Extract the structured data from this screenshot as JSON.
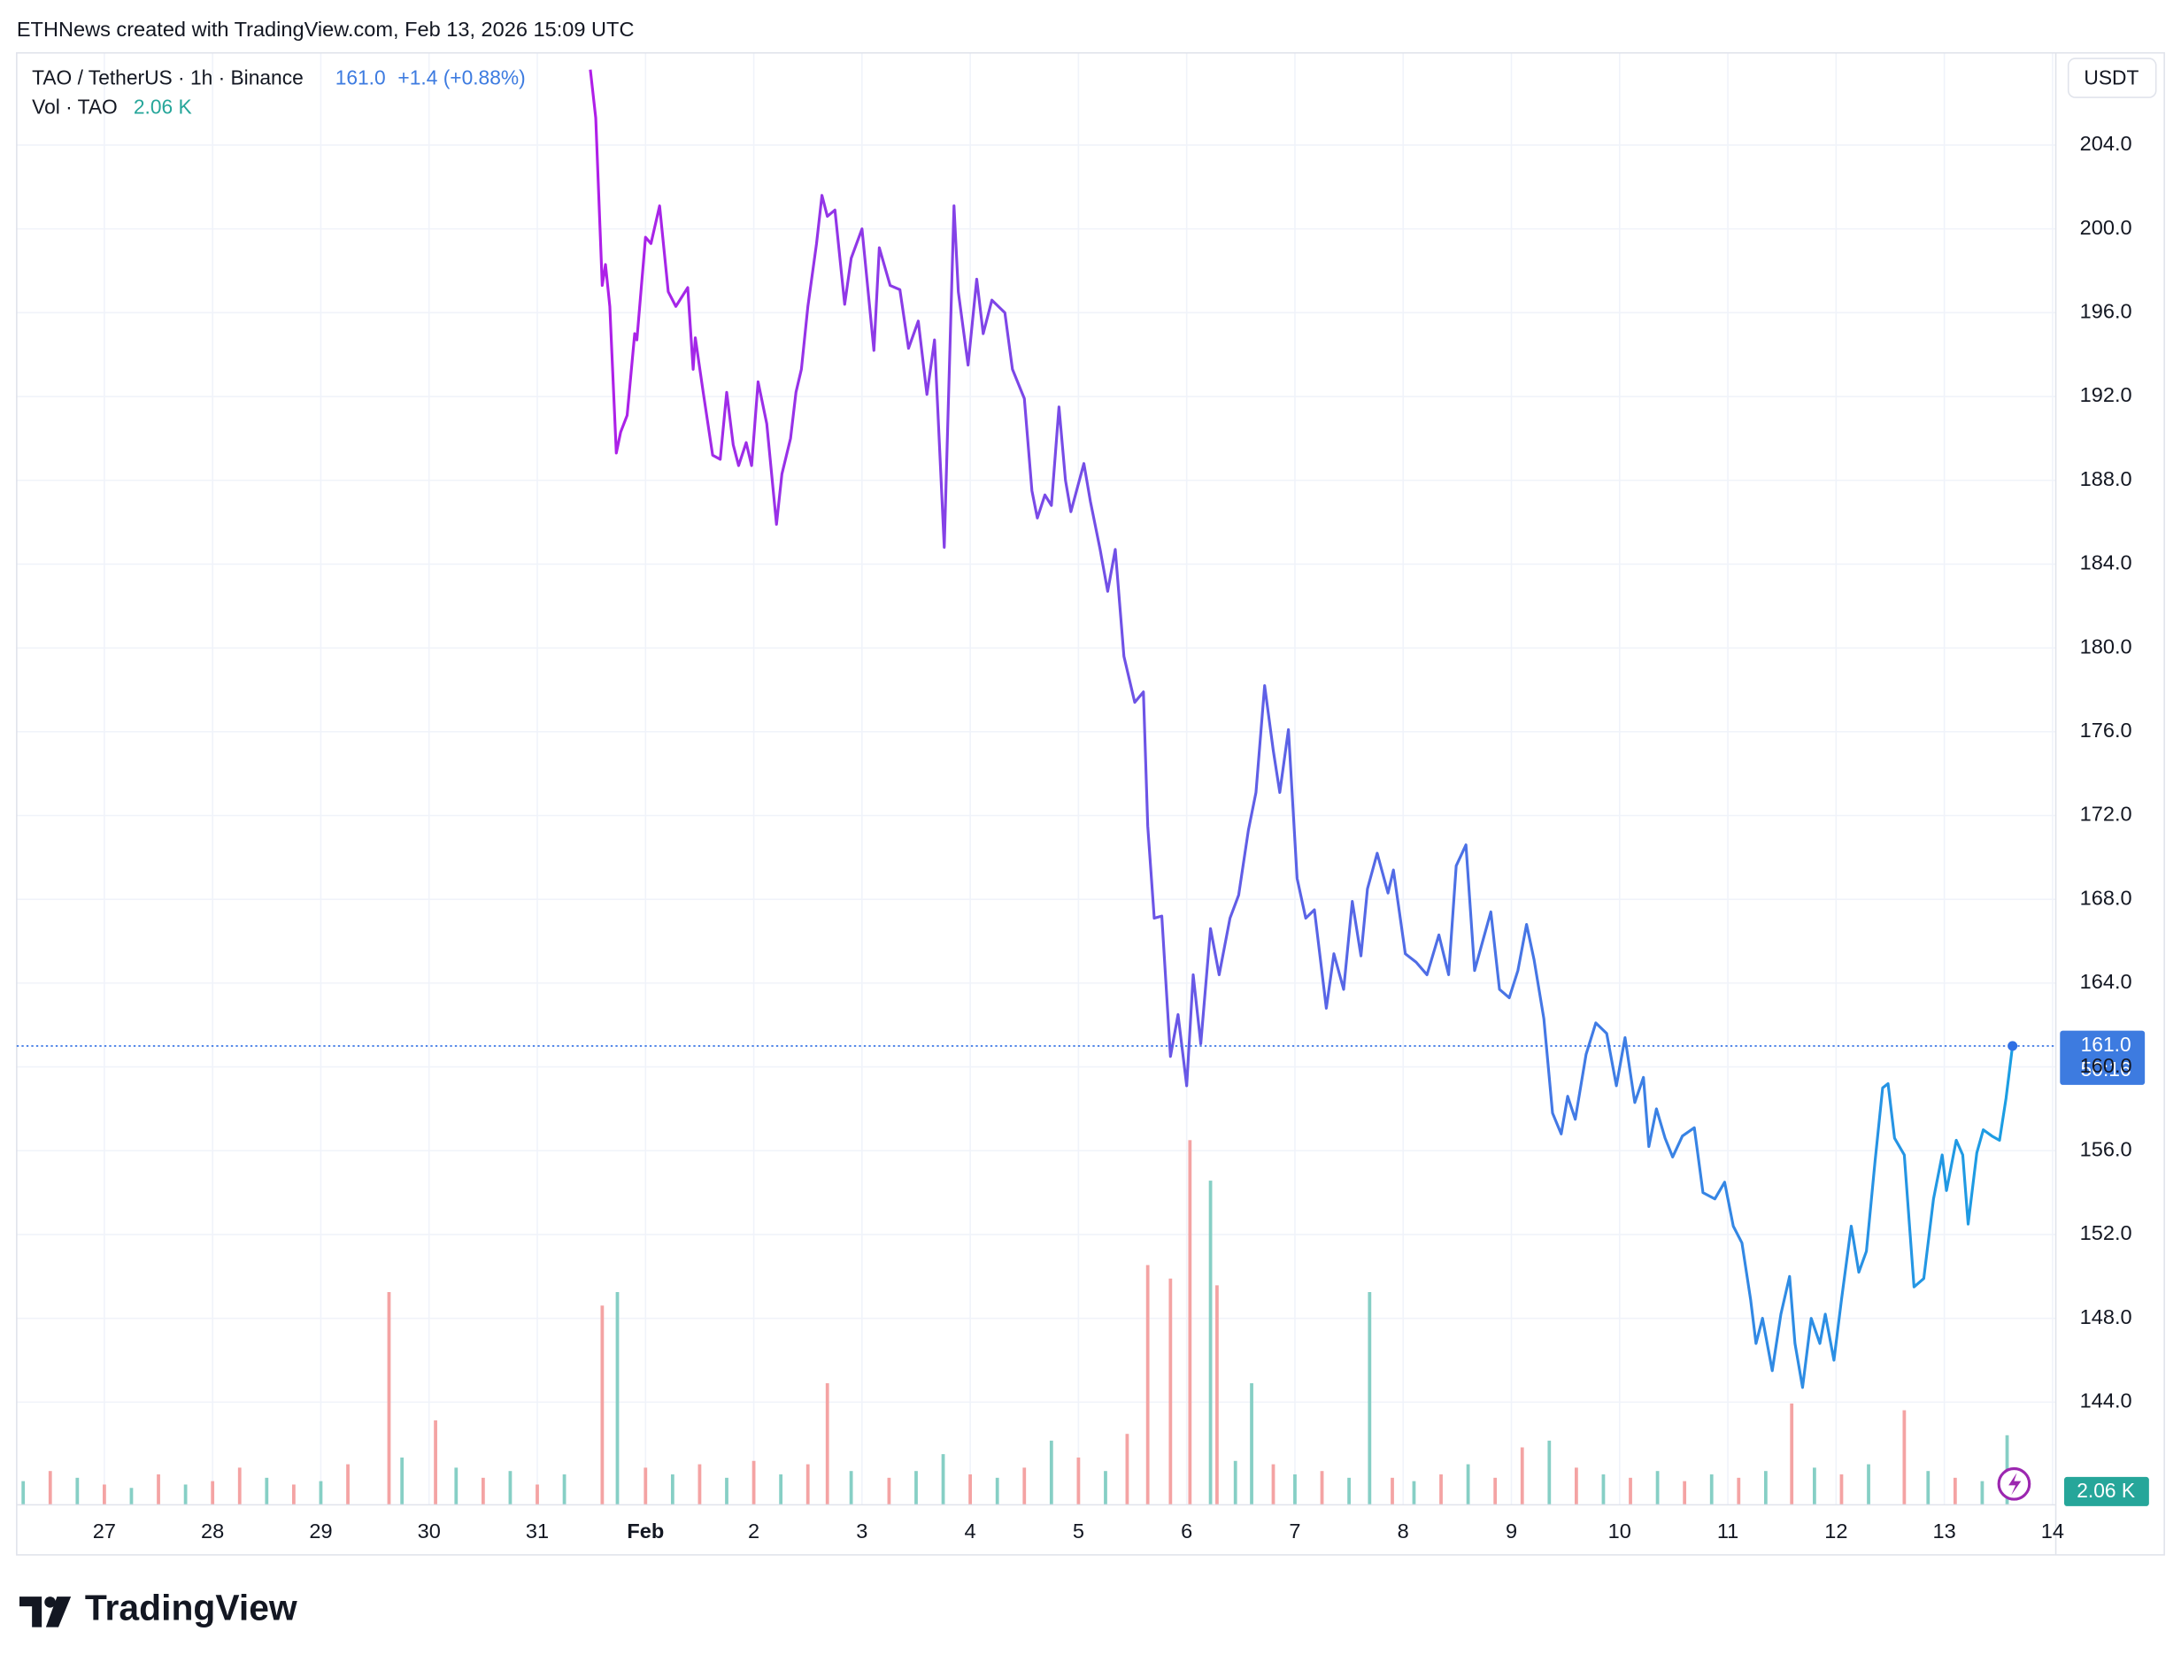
{
  "header": "ETHNews created with TradingView.com, Feb 13, 2026 15:09 UTC",
  "legend": {
    "symbol": "TAO / TetherUS · 1h · Binance",
    "price": "161.0",
    "change": "+1.4 (+0.88%)",
    "vol_title": "Vol · TAO",
    "vol_value": "2.06 K"
  },
  "axis_unit": "USDT",
  "badge": {
    "price": "161.0",
    "countdown": "50:16",
    "vol": "2.06 K"
  },
  "logo": "TradingView",
  "chart_data": {
    "type": "line",
    "xlim": [
      -0.81,
      18.03
    ],
    "xticks": [
      {
        "value": 0,
        "label": "27"
      },
      {
        "value": 1,
        "label": "28"
      },
      {
        "value": 2,
        "label": "29"
      },
      {
        "value": 3,
        "label": "30"
      },
      {
        "value": 4,
        "label": "31"
      },
      {
        "value": 5,
        "label": "Feb"
      },
      {
        "value": 6,
        "label": "2"
      },
      {
        "value": 7,
        "label": "3"
      },
      {
        "value": 8,
        "label": "4"
      },
      {
        "value": 9,
        "label": "5"
      },
      {
        "value": 10,
        "label": "6"
      },
      {
        "value": 11,
        "label": "7"
      },
      {
        "value": 12,
        "label": "8"
      },
      {
        "value": 13,
        "label": "9"
      },
      {
        "value": 14,
        "label": "10"
      },
      {
        "value": 15,
        "label": "11"
      },
      {
        "value": 16,
        "label": "12"
      },
      {
        "value": 17,
        "label": "13"
      },
      {
        "value": 18,
        "label": "14"
      }
    ],
    "ylim": [
      139.1,
      208.4
    ],
    "yticks": [
      {
        "value": 144,
        "label": "144.0"
      },
      {
        "value": 148,
        "label": "148.0"
      },
      {
        "value": 152,
        "label": "152.0"
      },
      {
        "value": 156,
        "label": "156.0"
      },
      {
        "value": 160,
        "label": "160.0"
      },
      {
        "value": 164,
        "label": "164.0"
      },
      {
        "value": 168,
        "label": "168.0"
      },
      {
        "value": 172,
        "label": "172.0"
      },
      {
        "value": 176,
        "label": "176.0"
      },
      {
        "value": 180,
        "label": "180.0"
      },
      {
        "value": 184,
        "label": "184.0"
      },
      {
        "value": 188,
        "label": "188.0"
      },
      {
        "value": 192,
        "label": "192.0"
      },
      {
        "value": 196,
        "label": "196.0"
      },
      {
        "value": 200,
        "label": "200.0"
      },
      {
        "value": 204,
        "label": "204.0"
      }
    ],
    "grid": true,
    "last": 161,
    "last_color": "#2f6fe4",
    "series": [
      {
        "colors": [
          "#b01ee8",
          "#5a63e6",
          "#1b9ee3"
        ],
        "x": [
          4.49,
          4.54,
          4.6,
          4.63,
          4.67,
          4.73,
          4.77,
          4.83,
          4.9,
          4.92,
          5.0,
          5.05,
          5.13,
          5.21,
          5.28,
          5.39,
          5.44,
          5.46,
          5.53,
          5.62,
          5.69,
          5.75,
          5.81,
          5.86,
          5.93,
          5.98,
          6.04,
          6.12,
          6.21,
          6.26,
          6.34,
          6.39,
          6.44,
          6.5,
          6.58,
          6.63,
          6.68,
          6.75,
          6.84,
          6.9,
          7.0,
          7.11,
          7.16,
          7.26,
          7.35,
          7.43,
          7.52,
          7.6,
          7.67,
          7.76,
          7.85,
          7.89,
          7.98,
          8.06,
          8.12,
          8.2,
          8.32,
          8.39,
          8.5,
          8.57,
          8.62,
          8.69,
          8.75,
          8.82,
          8.88,
          8.93,
          9.05,
          9.11,
          9.2,
          9.27,
          9.34,
          9.42,
          9.52,
          9.6,
          9.64,
          9.7,
          9.77,
          9.85,
          9.92,
          10.0,
          10.06,
          10.13,
          10.22,
          10.3,
          10.4,
          10.48,
          10.57,
          10.64,
          10.72,
          10.8,
          10.86,
          10.94,
          11.02,
          11.1,
          11.18,
          11.29,
          11.36,
          11.45,
          11.53,
          11.61,
          11.67,
          11.76,
          11.86,
          11.91,
          12.02,
          12.12,
          12.22,
          12.33,
          12.42,
          12.49,
          12.58,
          12.66,
          12.74,
          12.81,
          12.89,
          12.98,
          13.06,
          13.14,
          13.21,
          13.3,
          13.38,
          13.46,
          13.52,
          13.59,
          13.69,
          13.78,
          13.88,
          13.97,
          14.05,
          14.14,
          14.22,
          14.27,
          14.34,
          14.42,
          14.49,
          14.58,
          14.69,
          14.77,
          14.88,
          14.97,
          15.05,
          15.13,
          15.21,
          15.26,
          15.32,
          15.41,
          15.49,
          15.57,
          15.62,
          15.69,
          15.77,
          15.85,
          15.9,
          15.98,
          16.05,
          16.14,
          16.21,
          16.28,
          16.36,
          16.43,
          16.48,
          16.54,
          16.63,
          16.72,
          16.81,
          16.9,
          16.98,
          17.02,
          17.11,
          17.17,
          17.22,
          17.3,
          17.36,
          17.44,
          17.51,
          17.57,
          17.63
        ],
        "values": [
          207.6,
          205.3,
          197.3,
          198.3,
          196.3,
          189.3,
          190.3,
          191.1,
          195.0,
          194.7,
          199.6,
          199.3,
          201.1,
          197.0,
          196.3,
          197.2,
          193.3,
          194.8,
          192.3,
          189.2,
          189.0,
          192.2,
          189.7,
          188.7,
          189.8,
          188.7,
          192.7,
          190.7,
          185.9,
          188.3,
          190.0,
          192.2,
          193.3,
          196.3,
          199.3,
          201.6,
          200.6,
          200.9,
          196.4,
          198.6,
          200.0,
          194.2,
          199.1,
          197.3,
          197.1,
          194.3,
          195.6,
          192.1,
          194.7,
          184.8,
          201.1,
          197.0,
          193.5,
          197.6,
          195.0,
          196.6,
          196.0,
          193.3,
          191.9,
          187.5,
          186.2,
          187.3,
          186.8,
          191.5,
          188.0,
          186.5,
          188.8,
          187.0,
          184.7,
          182.7,
          184.7,
          179.6,
          177.4,
          177.9,
          171.5,
          167.1,
          167.2,
          160.5,
          162.5,
          159.1,
          164.4,
          161.1,
          166.6,
          164.4,
          167.1,
          168.2,
          171.3,
          173.1,
          178.2,
          175.1,
          173.1,
          176.1,
          169.0,
          167.1,
          167.5,
          162.8,
          165.4,
          163.7,
          167.9,
          165.3,
          168.5,
          170.2,
          168.3,
          169.4,
          165.4,
          165.0,
          164.4,
          166.3,
          164.4,
          169.6,
          170.6,
          164.6,
          166.1,
          167.4,
          163.7,
          163.3,
          164.6,
          166.8,
          165.1,
          162.3,
          157.8,
          156.8,
          158.6,
          157.5,
          160.6,
          162.1,
          161.6,
          159.1,
          161.4,
          158.3,
          159.5,
          156.2,
          158.0,
          156.6,
          155.7,
          156.7,
          157.1,
          154.0,
          153.7,
          154.5,
          152.4,
          151.6,
          148.9,
          146.8,
          148.0,
          145.5,
          148.2,
          150.0,
          146.8,
          144.7,
          148.0,
          146.8,
          148.2,
          146.0,
          148.9,
          152.4,
          150.2,
          151.2,
          155.5,
          159.0,
          159.2,
          156.6,
          155.8,
          149.5,
          149.9,
          153.7,
          155.8,
          154.1,
          156.5,
          155.8,
          152.5,
          155.9,
          157.0,
          156.7,
          156.5,
          158.5,
          161.0
        ]
      }
    ],
    "volume": {
      "ylim": [
        0,
        43
      ],
      "x": [
        -0.75,
        -0.5,
        -0.25,
        0,
        0.25,
        0.5,
        0.75,
        1.0,
        1.25,
        1.5,
        1.75,
        2.0,
        2.25,
        2.63,
        2.75,
        3.06,
        3.25,
        3.5,
        3.75,
        4.0,
        4.25,
        4.6,
        4.74,
        5.0,
        5.25,
        5.5,
        5.75,
        6.0,
        6.25,
        6.5,
        6.68,
        6.9,
        7.25,
        7.5,
        7.75,
        8.0,
        8.25,
        8.5,
        8.75,
        9.0,
        9.25,
        9.45,
        9.64,
        9.85,
        10.03,
        10.22,
        10.28,
        10.45,
        10.6,
        10.8,
        11.0,
        11.25,
        11.5,
        11.69,
        11.9,
        12.1,
        12.35,
        12.6,
        12.85,
        13.1,
        13.35,
        13.6,
        13.85,
        14.1,
        14.35,
        14.6,
        14.85,
        15.1,
        15.35,
        15.59,
        15.8,
        16.05,
        16.3,
        16.63,
        16.85,
        17.1,
        17.35,
        17.58
      ],
      "values": [
        0.7,
        1.0,
        0.8,
        0.6,
        0.5,
        0.9,
        0.6,
        0.7,
        1.1,
        0.8,
        0.6,
        0.7,
        1.2,
        6.3,
        1.4,
        2.5,
        1.1,
        0.8,
        1.0,
        0.6,
        0.9,
        5.9,
        6.3,
        1.1,
        0.9,
        1.2,
        0.8,
        1.3,
        0.9,
        1.2,
        3.6,
        1.0,
        0.8,
        1.0,
        1.5,
        0.9,
        0.8,
        1.1,
        1.9,
        1.4,
        1.0,
        2.1,
        7.1,
        6.7,
        10.8,
        9.6,
        6.5,
        1.3,
        3.6,
        1.2,
        0.9,
        1.0,
        0.8,
        6.3,
        0.8,
        0.7,
        0.9,
        1.2,
        0.8,
        1.7,
        1.9,
        1.1,
        0.9,
        0.8,
        1.0,
        0.7,
        0.9,
        0.8,
        1.0,
        3.0,
        1.1,
        0.9,
        1.2,
        2.8,
        1.0,
        0.8,
        0.7,
        2.06
      ],
      "colors": [
        "#86cfc5",
        "#f4a3a3",
        "#86cfc5",
        "#f4a3a3",
        "#86cfc5",
        "#f4a3a3",
        "#86cfc5",
        "#f4a3a3",
        "#f4a3a3",
        "#86cfc5",
        "#f4a3a3",
        "#86cfc5",
        "#f4a3a3",
        "#f4a3a3",
        "#86cfc5",
        "#f4a3a3",
        "#86cfc5",
        "#f4a3a3",
        "#86cfc5",
        "#f4a3a3",
        "#86cfc5",
        "#f4a3a3",
        "#86cfc5",
        "#f4a3a3",
        "#86cfc5",
        "#f4a3a3",
        "#86cfc5",
        "#f4a3a3",
        "#86cfc5",
        "#f4a3a3",
        "#f4a3a3",
        "#86cfc5",
        "#f4a3a3",
        "#86cfc5",
        "#86cfc5",
        "#f4a3a3",
        "#86cfc5",
        "#f4a3a3",
        "#86cfc5",
        "#f4a3a3",
        "#86cfc5",
        "#f4a3a3",
        "#f4a3a3",
        "#f4a3a3",
        "#f4a3a3",
        "#86cfc5",
        "#f4a3a3",
        "#86cfc5",
        "#86cfc5",
        "#f4a3a3",
        "#86cfc5",
        "#f4a3a3",
        "#86cfc5",
        "#86cfc5",
        "#f4a3a3",
        "#86cfc5",
        "#f4a3a3",
        "#86cfc5",
        "#f4a3a3",
        "#f4a3a3",
        "#86cfc5",
        "#f4a3a3",
        "#86cfc5",
        "#f4a3a3",
        "#86cfc5",
        "#f4a3a3",
        "#86cfc5",
        "#f4a3a3",
        "#86cfc5",
        "#f4a3a3",
        "#86cfc5",
        "#f4a3a3",
        "#86cfc5",
        "#f4a3a3",
        "#86cfc5",
        "#f4a3a3",
        "#86cfc5",
        "#86cfc5"
      ]
    }
  }
}
